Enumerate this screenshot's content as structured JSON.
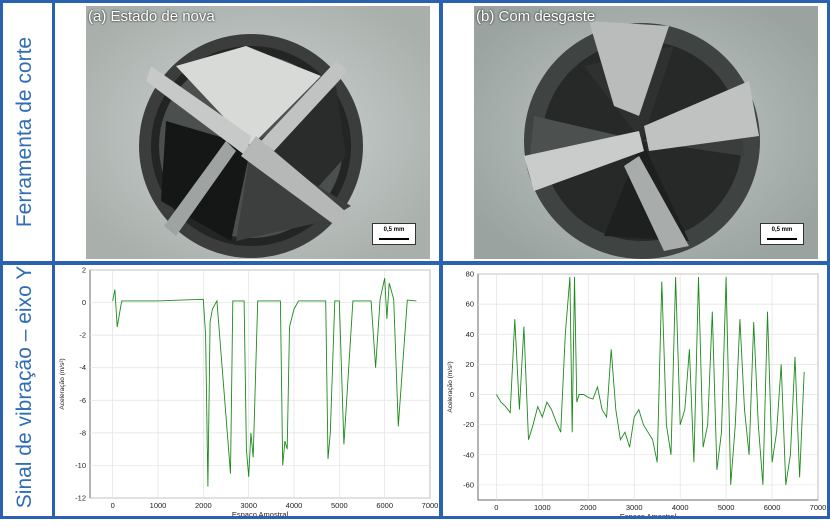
{
  "labels": {
    "row1": "Ferramenta de corte",
    "row2": "Sinal de vibração – eixo Y"
  },
  "photos": {
    "a_caption": "(a) Estado de nova",
    "b_caption": "(b) Com desgaste",
    "scale": "0,5 mm"
  },
  "chart_data": [
    {
      "type": "line",
      "xlabel": "Espaço Amostral",
      "ylabel": "Aceleração (m/s²)",
      "xlim": [
        -500,
        7000
      ],
      "ylim": [
        -12,
        2
      ],
      "xticks": [
        0,
        1000,
        2000,
        3000,
        4000,
        5000,
        6000,
        7000
      ],
      "yticks": [
        -12,
        -10,
        -8,
        -6,
        -4,
        -2,
        0,
        2
      ],
      "grid": true,
      "color": "#1e8a1e",
      "series": [
        {
          "x": [
            0,
            50,
            100,
            200,
            600,
            1000,
            1500,
            2000,
            2050,
            2100,
            2150,
            2200,
            2300,
            2600,
            2650,
            2700,
            2900,
            2950,
            3000,
            3050,
            3100,
            3200,
            3300,
            3700,
            3750,
            3800,
            3850,
            3900,
            4000,
            4100,
            4200,
            4600,
            4700,
            4750,
            4800,
            4900,
            5000,
            5100,
            5300,
            5500,
            5700,
            5800,
            5900,
            6000,
            6050,
            6100,
            6200,
            6300,
            6500,
            6700
          ],
          "y": [
            0.1,
            0.8,
            -1.5,
            0.1,
            0.1,
            0.1,
            0.15,
            0.2,
            -2,
            -11.3,
            -1.2,
            -0.4,
            0.1,
            -10.5,
            0.1,
            0.1,
            0.1,
            -9,
            -10.7,
            -8,
            -9.5,
            0.1,
            0.1,
            0.1,
            -10,
            -8.5,
            -9,
            -1.5,
            -0.4,
            0.1,
            0.1,
            0.1,
            0.1,
            -9.6,
            -8,
            0.1,
            0.1,
            -8.7,
            0.1,
            0.1,
            0.1,
            -4,
            0.2,
            1.5,
            -1,
            1.2,
            0.2,
            -7.6,
            0.15,
            0.1
          ]
        }
      ]
    },
    {
      "type": "line",
      "xlabel": "Espaço Amostral",
      "ylabel": "Aceleração (m/s²)",
      "xlim": [
        -400,
        7000
      ],
      "ylim": [
        -70,
        80
      ],
      "xticks": [
        0,
        1000,
        2000,
        3000,
        4000,
        5000,
        6000,
        7000
      ],
      "yticks": [
        -60,
        -40,
        -20,
        0,
        20,
        40,
        60,
        80
      ],
      "grid": true,
      "color": "#1e8a1e",
      "series": [
        {
          "x": [
            0,
            100,
            200,
            300,
            400,
            500,
            600,
            700,
            800,
            900,
            1000,
            1100,
            1200,
            1300,
            1400,
            1500,
            1600,
            1650,
            1700,
            1750,
            1800,
            1900,
            2000,
            2100,
            2200,
            2300,
            2400,
            2500,
            2600,
            2700,
            2800,
            2900,
            3000,
            3100,
            3200,
            3300,
            3400,
            3500,
            3600,
            3700,
            3800,
            3900,
            4000,
            4100,
            4200,
            4300,
            4400,
            4500,
            4600,
            4700,
            4800,
            4900,
            5000,
            5100,
            5200,
            5300,
            5400,
            5500,
            5600,
            5700,
            5800,
            5900,
            6000,
            6100,
            6200,
            6300,
            6400,
            6500,
            6600,
            6700
          ],
          "y": [
            0,
            -5,
            -8,
            -12,
            50,
            -10,
            45,
            -30,
            -20,
            -8,
            -15,
            -5,
            -10,
            -18,
            -25,
            40,
            78,
            -25,
            78,
            -5,
            0,
            0,
            -2,
            -3,
            5,
            -10,
            -15,
            30,
            -10,
            -30,
            -25,
            -35,
            -15,
            -10,
            -20,
            -25,
            -30,
            -45,
            75,
            -20,
            -40,
            78,
            -20,
            -10,
            30,
            -45,
            78,
            -35,
            -20,
            55,
            -50,
            -25,
            78,
            -60,
            -20,
            50,
            -10,
            -40,
            48,
            -20,
            -60,
            55,
            -45,
            -25,
            20,
            -60,
            -40,
            25,
            -55,
            15
          ]
        }
      ]
    }
  ]
}
